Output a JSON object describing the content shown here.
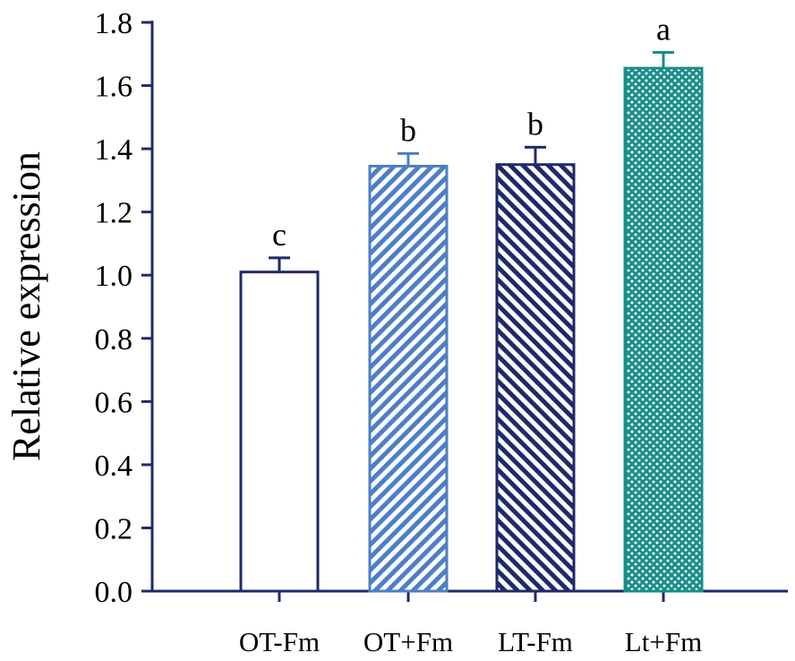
{
  "chart_data": {
    "type": "bar",
    "categories": [
      "OT-Fm",
      "OT+Fm",
      "LT-Fm",
      "Lt+Fm"
    ],
    "values": [
      1.01,
      1.345,
      1.35,
      1.655
    ],
    "errors": [
      0.045,
      0.04,
      0.055,
      0.05
    ],
    "significance": [
      "c",
      "b",
      "b",
      "a"
    ],
    "fill_patterns": [
      "open",
      "diagonal-stripes",
      "diagonal-stripes-reversed",
      "dots"
    ],
    "colors": [
      "#1f2a6b",
      "#4d7fc4",
      "#1f2a6b",
      "#1a8e88"
    ],
    "title": "",
    "xlabel": "",
    "ylabel": "Relative expression",
    "ylim": [
      0,
      1.8
    ],
    "yticks": [
      "0.0",
      "0.2",
      "0.4",
      "0.6",
      "0.8",
      "1.0",
      "1.2",
      "1.4",
      "1.6",
      "1.8"
    ],
    "grid": false,
    "legend": "none"
  }
}
